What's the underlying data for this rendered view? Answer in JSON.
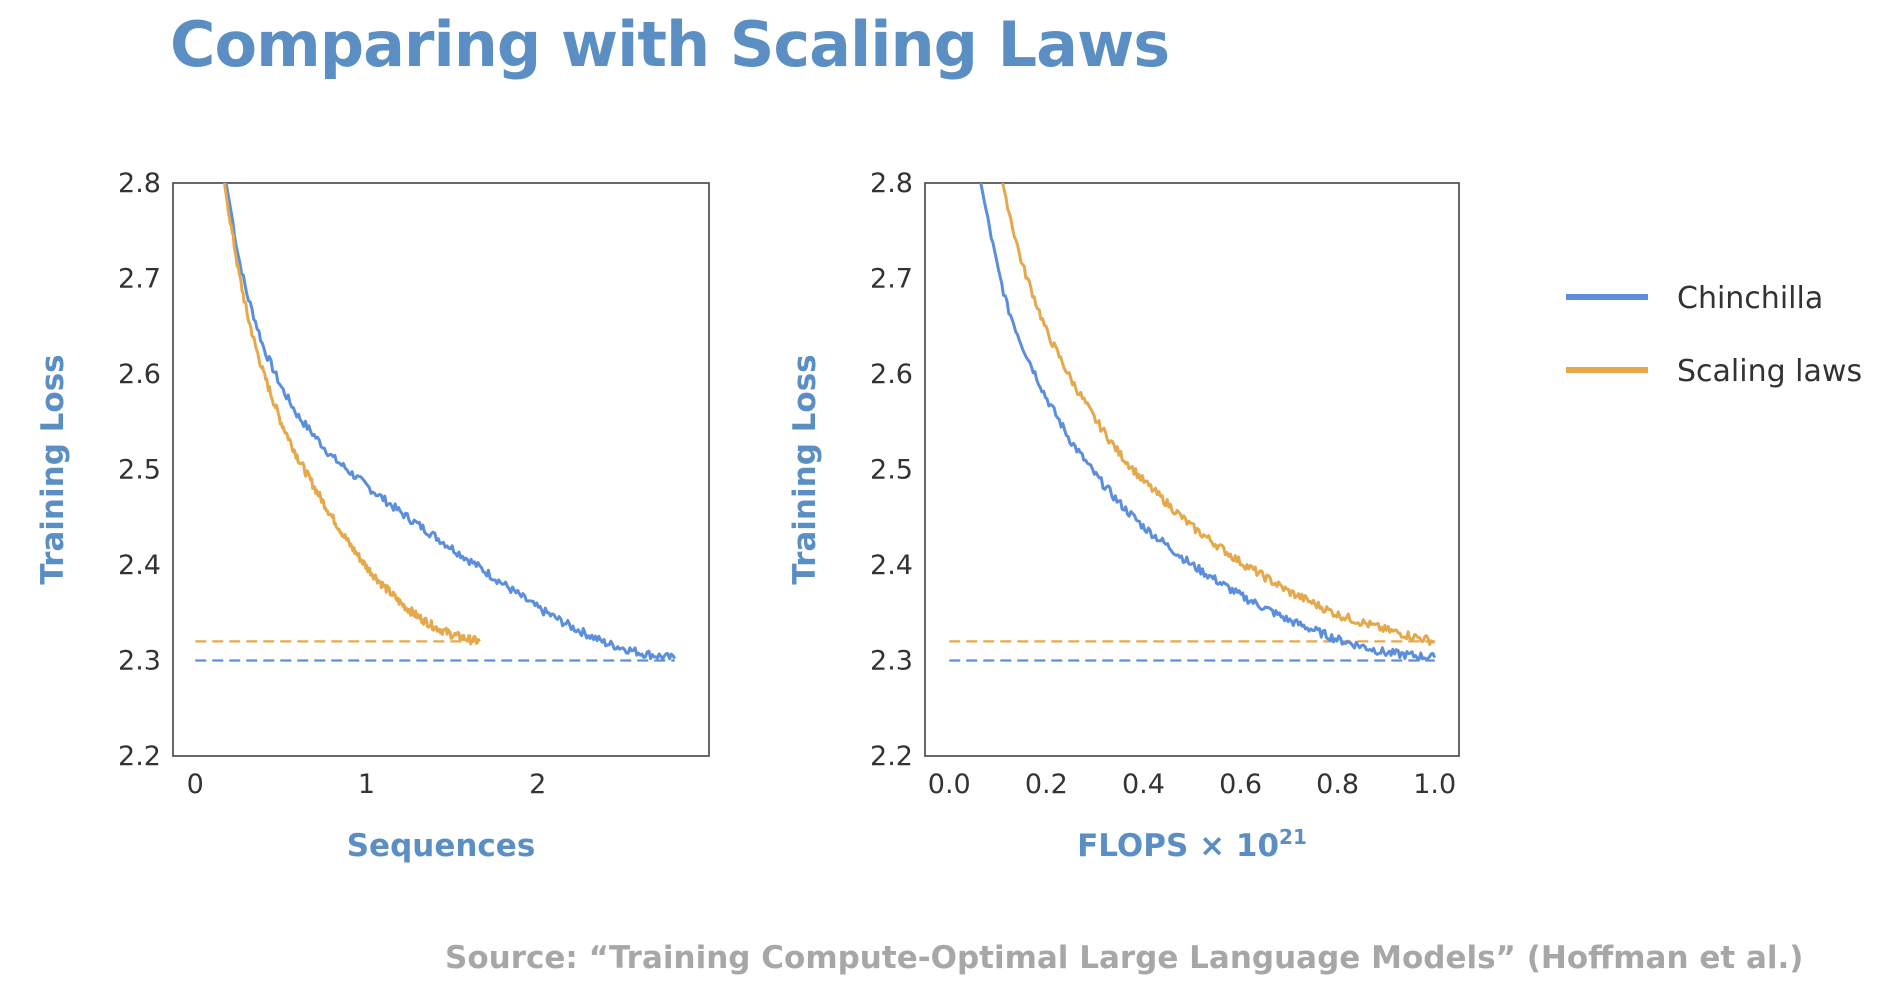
{
  "slide": {
    "title": "Comparing with Scaling Laws",
    "source": "Source: “Training Compute-Optimal Large Language Models” (Hoffman et al.)"
  },
  "colors": {
    "chinchilla": "#5b8fde",
    "scaling_laws": "#e5a94c",
    "title": "#5b8fc4",
    "source": "#a7a7a7"
  },
  "legend": {
    "placement": "right",
    "items": [
      {
        "name": "Chinchilla",
        "color": "#5b8fde"
      },
      {
        "name": "Scaling laws",
        "color": "#e5a94c"
      }
    ]
  },
  "chart_data": [
    {
      "type": "line",
      "xlabel": "Sequences",
      "ylabel": "Training Loss",
      "xlim": [
        -0.13,
        3.0
      ],
      "ylim": [
        2.2,
        2.8
      ],
      "xticks": [
        "0",
        "1",
        "2"
      ],
      "xtick_values": [
        0,
        1,
        2
      ],
      "yticks": [
        "2.8",
        "2.7",
        "2.6",
        "2.5",
        "2.4",
        "2.3",
        "2.2"
      ],
      "ytick_values": [
        2.8,
        2.7,
        2.6,
        2.5,
        2.4,
        2.3,
        2.2
      ],
      "grid": false,
      "series": [
        {
          "name": "Chinchilla",
          "color": "#5b8fde",
          "x": [
            0.18,
            0.2,
            0.25,
            0.3,
            0.4,
            0.5,
            0.6,
            0.8,
            1.0,
            1.2,
            1.4,
            1.6,
            1.8,
            2.0,
            2.2,
            2.4,
            2.6,
            2.8
          ],
          "y": [
            2.8,
            2.78,
            2.725,
            2.685,
            2.627,
            2.587,
            2.556,
            2.513,
            2.483,
            2.455,
            2.43,
            2.405,
            2.38,
            2.355,
            2.335,
            2.318,
            2.308,
            2.302
          ]
        },
        {
          "name": "Scaling laws",
          "color": "#e5a94c",
          "x": [
            0.17,
            0.2,
            0.25,
            0.3,
            0.35,
            0.4,
            0.5,
            0.6,
            0.7,
            0.8,
            0.9,
            1.0,
            1.1,
            1.2,
            1.3,
            1.4,
            1.5,
            1.6,
            1.66
          ],
          "y": [
            2.8,
            2.765,
            2.71,
            2.665,
            2.63,
            2.6,
            2.55,
            2.512,
            2.48,
            2.45,
            2.422,
            2.398,
            2.378,
            2.36,
            2.346,
            2.335,
            2.327,
            2.322,
            2.32
          ]
        }
      ],
      "reference_lines": [
        {
          "series": "Scaling laws",
          "y": 2.32,
          "x_range": [
            0,
            1.66
          ],
          "style": "dashed"
        },
        {
          "series": "Chinchilla",
          "y": 2.3,
          "x_range": [
            0,
            2.8
          ],
          "style": "dashed"
        }
      ]
    },
    {
      "type": "line",
      "xlabel": "FLOPS × 10",
      "xlabel_exponent": "21",
      "ylabel": "Training Loss",
      "xlim": [
        -0.05,
        1.05
      ],
      "ylim": [
        2.2,
        2.8
      ],
      "xticks": [
        "0.0",
        "0.2",
        "0.4",
        "0.6",
        "0.8",
        "1.0"
      ],
      "xtick_values": [
        0.0,
        0.2,
        0.4,
        0.6,
        0.8,
        1.0
      ],
      "yticks": [
        "2.8",
        "2.7",
        "2.6",
        "2.5",
        "2.4",
        "2.3",
        "2.2"
      ],
      "ytick_values": [
        2.8,
        2.7,
        2.6,
        2.5,
        2.4,
        2.3,
        2.2
      ],
      "grid": false,
      "series": [
        {
          "name": "Chinchilla",
          "color": "#5b8fde",
          "x": [
            0.065,
            0.08,
            0.1,
            0.12,
            0.15,
            0.2,
            0.25,
            0.3,
            0.35,
            0.4,
            0.5,
            0.6,
            0.7,
            0.8,
            0.9,
            1.0
          ],
          "y": [
            2.8,
            2.76,
            2.71,
            2.67,
            2.63,
            2.575,
            2.53,
            2.495,
            2.465,
            2.44,
            2.4,
            2.368,
            2.342,
            2.322,
            2.308,
            2.303
          ]
        },
        {
          "name": "Scaling laws",
          "color": "#e5a94c",
          "x": [
            0.11,
            0.13,
            0.15,
            0.2,
            0.25,
            0.3,
            0.35,
            0.4,
            0.5,
            0.6,
            0.7,
            0.8,
            0.9,
            1.0
          ],
          "y": [
            2.8,
            2.755,
            2.715,
            2.645,
            2.595,
            2.553,
            2.517,
            2.488,
            2.44,
            2.403,
            2.372,
            2.348,
            2.332,
            2.32
          ]
        }
      ],
      "reference_lines": [
        {
          "series": "Scaling laws",
          "y": 2.32,
          "x_range": [
            0,
            1.0
          ],
          "style": "dashed"
        },
        {
          "series": "Chinchilla",
          "y": 2.3,
          "x_range": [
            0,
            1.0
          ],
          "style": "dashed"
        }
      ]
    }
  ]
}
